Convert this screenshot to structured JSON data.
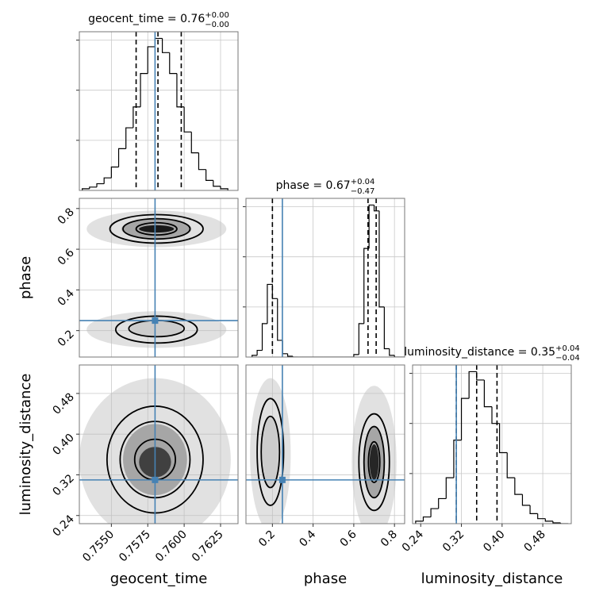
{
  "chart_data": {
    "type": "corner",
    "truth_color": "#4682b4",
    "parameters": [
      {
        "name": "geocent_time",
        "title": "geocent_time = 0.76",
        "title_plus": "+0.00",
        "title_minus": "−0.00",
        "lim": [
          0.7528,
          0.7637
        ],
        "ticks": [
          {
            "value": 0.755,
            "label": "0.7550"
          },
          0.7575,
          {
            "value": 0.76,
            "label": "0.7600"
          },
          0.7625
        ],
        "truth": 0.758,
        "quantiles": [
          0.7567,
          0.7582,
          0.7598
        ],
        "bins": [
          0.753,
          0.7535,
          0.754,
          0.7545,
          0.755,
          0.7555,
          0.756,
          0.7565,
          0.757,
          0.7575,
          0.758,
          0.7585,
          0.759,
          0.7595,
          0.76,
          0.7605,
          0.761,
          0.7615,
          0.762,
          0.7625,
          0.763
        ],
        "counts": [
          2,
          4,
          8,
          15,
          28,
          50,
          75,
          100,
          140,
          172,
          182,
          165,
          140,
          100,
          70,
          45,
          25,
          12,
          5,
          2
        ],
        "count_lim": [
          0,
          190
        ],
        "count_ticks": [
          60,
          120,
          180
        ]
      },
      {
        "name": "phase",
        "title": "phase = 0.67",
        "title_plus": "+0.04",
        "title_minus": "−0.47",
        "lim": [
          0.07,
          0.85
        ],
        "ticks": [
          0.2,
          0.4,
          0.6,
          0.8
        ],
        "truth": 0.249,
        "quantiles": [
          0.2,
          0.67,
          0.71
        ],
        "bins": [
          0.1,
          0.125,
          0.15,
          0.175,
          0.2,
          0.225,
          0.25,
          0.275,
          0.3,
          0.325,
          0.35,
          0.375,
          0.4,
          0.425,
          0.45,
          0.475,
          0.5,
          0.525,
          0.55,
          0.575,
          0.6,
          0.625,
          0.65,
          0.675,
          0.7,
          0.725,
          0.75,
          0.775,
          0.8,
          0.825,
          0.85
        ],
        "counts": [
          2,
          8,
          40,
          87,
          70,
          20,
          4,
          1,
          0,
          0,
          0,
          0,
          0,
          0,
          0,
          0,
          0,
          0,
          0,
          0,
          3,
          40,
          130,
          182,
          175,
          60,
          10,
          2,
          0,
          0
        ],
        "count_lim": [
          0,
          190
        ],
        "count_ticks": [
          60,
          120,
          180
        ]
      },
      {
        "name": "luminosity_distance",
        "title": "luminosity_distance = 0.35",
        "title_plus": "+0.04",
        "title_minus": "−0.04",
        "lim": [
          0.224,
          0.536
        ],
        "ticks": [
          0.24,
          0.32,
          {
            "value": 0.4,
            "label": "0.40"
          },
          0.48
        ],
        "truth": 0.31,
        "quantiles": [
          0.31,
          0.35,
          0.39
        ],
        "bins": [
          0.23,
          0.245,
          0.26,
          0.275,
          0.29,
          0.305,
          0.32,
          0.335,
          0.35,
          0.365,
          0.38,
          0.395,
          0.41,
          0.425,
          0.44,
          0.455,
          0.47,
          0.485,
          0.5,
          0.515,
          0.53
        ],
        "counts": [
          3,
          8,
          18,
          30,
          55,
          100,
          150,
          182,
          172,
          140,
          120,
          85,
          55,
          35,
          22,
          12,
          6,
          3,
          1,
          0
        ],
        "count_lim": [
          0,
          190
        ],
        "count_ticks": [
          60,
          120,
          180
        ]
      }
    ],
    "pairs": [
      {
        "x": 0,
        "y": 1,
        "clouds": [
          {
            "cx": 0.7581,
            "cy": 0.7,
            "rx": 0.0048,
            "ry": 0.09
          },
          {
            "cx": 0.7581,
            "cy": 0.205,
            "rx": 0.0048,
            "ry": 0.09
          }
        ],
        "density": [
          {
            "cx": 0.7581,
            "cy": 0.7,
            "rx": 0.0024,
            "ry": 0.05,
            "shade": 0.35
          },
          {
            "cx": 0.7581,
            "cy": 0.7,
            "rx": 0.0012,
            "ry": 0.018,
            "shade": 0.9
          },
          {
            "cx": 0.7581,
            "cy": 0.21,
            "rx": 0.0018,
            "ry": 0.04,
            "shade": 0.2
          }
        ],
        "contours": [
          {
            "cx": 0.7581,
            "cy": 0.7,
            "rx": 0.0032,
            "ry": 0.07
          },
          {
            "cx": 0.7581,
            "cy": 0.7,
            "rx": 0.0023,
            "ry": 0.05
          },
          {
            "cx": 0.7581,
            "cy": 0.7,
            "rx": 0.0014,
            "ry": 0.03
          },
          {
            "cx": 0.7581,
            "cy": 0.205,
            "rx": 0.0028,
            "ry": 0.066
          },
          {
            "cx": 0.7581,
            "cy": 0.21,
            "rx": 0.0019,
            "ry": 0.04
          }
        ]
      },
      {
        "x": 0,
        "y": 2,
        "clouds": [
          {
            "cx": 0.758,
            "cy": 0.35,
            "rx": 0.0052,
            "ry": 0.16
          }
        ],
        "density": [
          {
            "cx": 0.758,
            "cy": 0.35,
            "rx": 0.0022,
            "ry": 0.07,
            "shade": 0.35
          },
          {
            "cx": 0.758,
            "cy": 0.345,
            "rx": 0.0011,
            "ry": 0.03,
            "shade": 0.75
          }
        ],
        "contours": [
          {
            "cx": 0.758,
            "cy": 0.35,
            "rx": 0.0033,
            "ry": 0.105
          },
          {
            "cx": 0.758,
            "cy": 0.35,
            "rx": 0.0024,
            "ry": 0.075
          },
          {
            "cx": 0.758,
            "cy": 0.35,
            "rx": 0.0014,
            "ry": 0.04
          }
        ]
      },
      {
        "x": 1,
        "y": 2,
        "clouds": [
          {
            "cx": 0.19,
            "cy": 0.36,
            "rx": 0.1,
            "ry": 0.15
          },
          {
            "cx": 0.7,
            "cy": 0.345,
            "rx": 0.11,
            "ry": 0.15
          }
        ],
        "density": [
          {
            "cx": 0.19,
            "cy": 0.365,
            "rx": 0.04,
            "ry": 0.07,
            "shade": 0.2
          },
          {
            "cx": 0.7,
            "cy": 0.345,
            "rx": 0.05,
            "ry": 0.07,
            "shade": 0.35
          },
          {
            "cx": 0.7,
            "cy": 0.345,
            "rx": 0.022,
            "ry": 0.035,
            "shade": 0.85
          }
        ],
        "contours": [
          {
            "cx": 0.19,
            "cy": 0.365,
            "rx": 0.065,
            "ry": 0.105
          },
          {
            "cx": 0.19,
            "cy": 0.365,
            "rx": 0.045,
            "ry": 0.07
          },
          {
            "cx": 0.7,
            "cy": 0.345,
            "rx": 0.075,
            "ry": 0.095
          },
          {
            "cx": 0.7,
            "cy": 0.345,
            "rx": 0.05,
            "ry": 0.07
          },
          {
            "cx": 0.7,
            "cy": 0.345,
            "rx": 0.028,
            "ry": 0.04
          }
        ]
      }
    ]
  }
}
